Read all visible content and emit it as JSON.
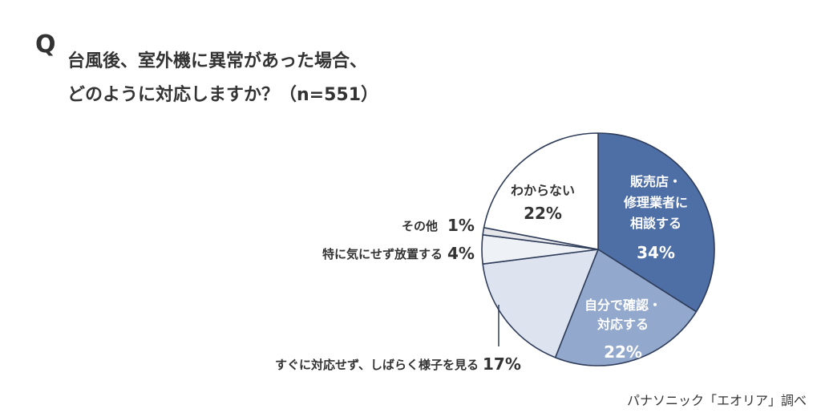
{
  "question": {
    "mark": "Q",
    "line1": "台風後、室外機に異常があった場合、",
    "line2": "どのように対応しますか？（n=551）"
  },
  "source": "パナソニック「エオリア」調べ",
  "colors": {
    "stroke": "#2f3d5a",
    "inside_light_text": "#333333",
    "inside_dark_text": "#ffffff",
    "leader": "#2f3d5a"
  },
  "chart_data": {
    "type": "pie",
    "title": "",
    "start": "12 o'clock, clockwise",
    "slices": [
      {
        "label_lines": [
          "販売店・",
          "修理業者に",
          "相談する"
        ],
        "value": 34,
        "value_label": "34%",
        "color": "#4e6ea6",
        "label_position": "inside"
      },
      {
        "label_lines": [
          "自分で確認・",
          "対応する"
        ],
        "value": 22,
        "value_label": "22%",
        "color": "#93a8cd",
        "label_position": "inside"
      },
      {
        "label_lines": [
          "すぐに対応せず、しばらく様子を見る"
        ],
        "value": 17,
        "value_label": "17%",
        "color": "#dde3ef",
        "label_position": "outside"
      },
      {
        "label_lines": [
          "特に気にせず放置する"
        ],
        "value": 4,
        "value_label": "4%",
        "color": "#eef1f6",
        "label_position": "outside"
      },
      {
        "label_lines": [
          "その他"
        ],
        "value": 1,
        "value_label": "1%",
        "color": "#e4e6ea",
        "label_position": "outside"
      },
      {
        "label_lines": [
          "わからない"
        ],
        "value": 22,
        "value_label": "22%",
        "color": "#ffffff",
        "label_position": "inside"
      }
    ]
  }
}
